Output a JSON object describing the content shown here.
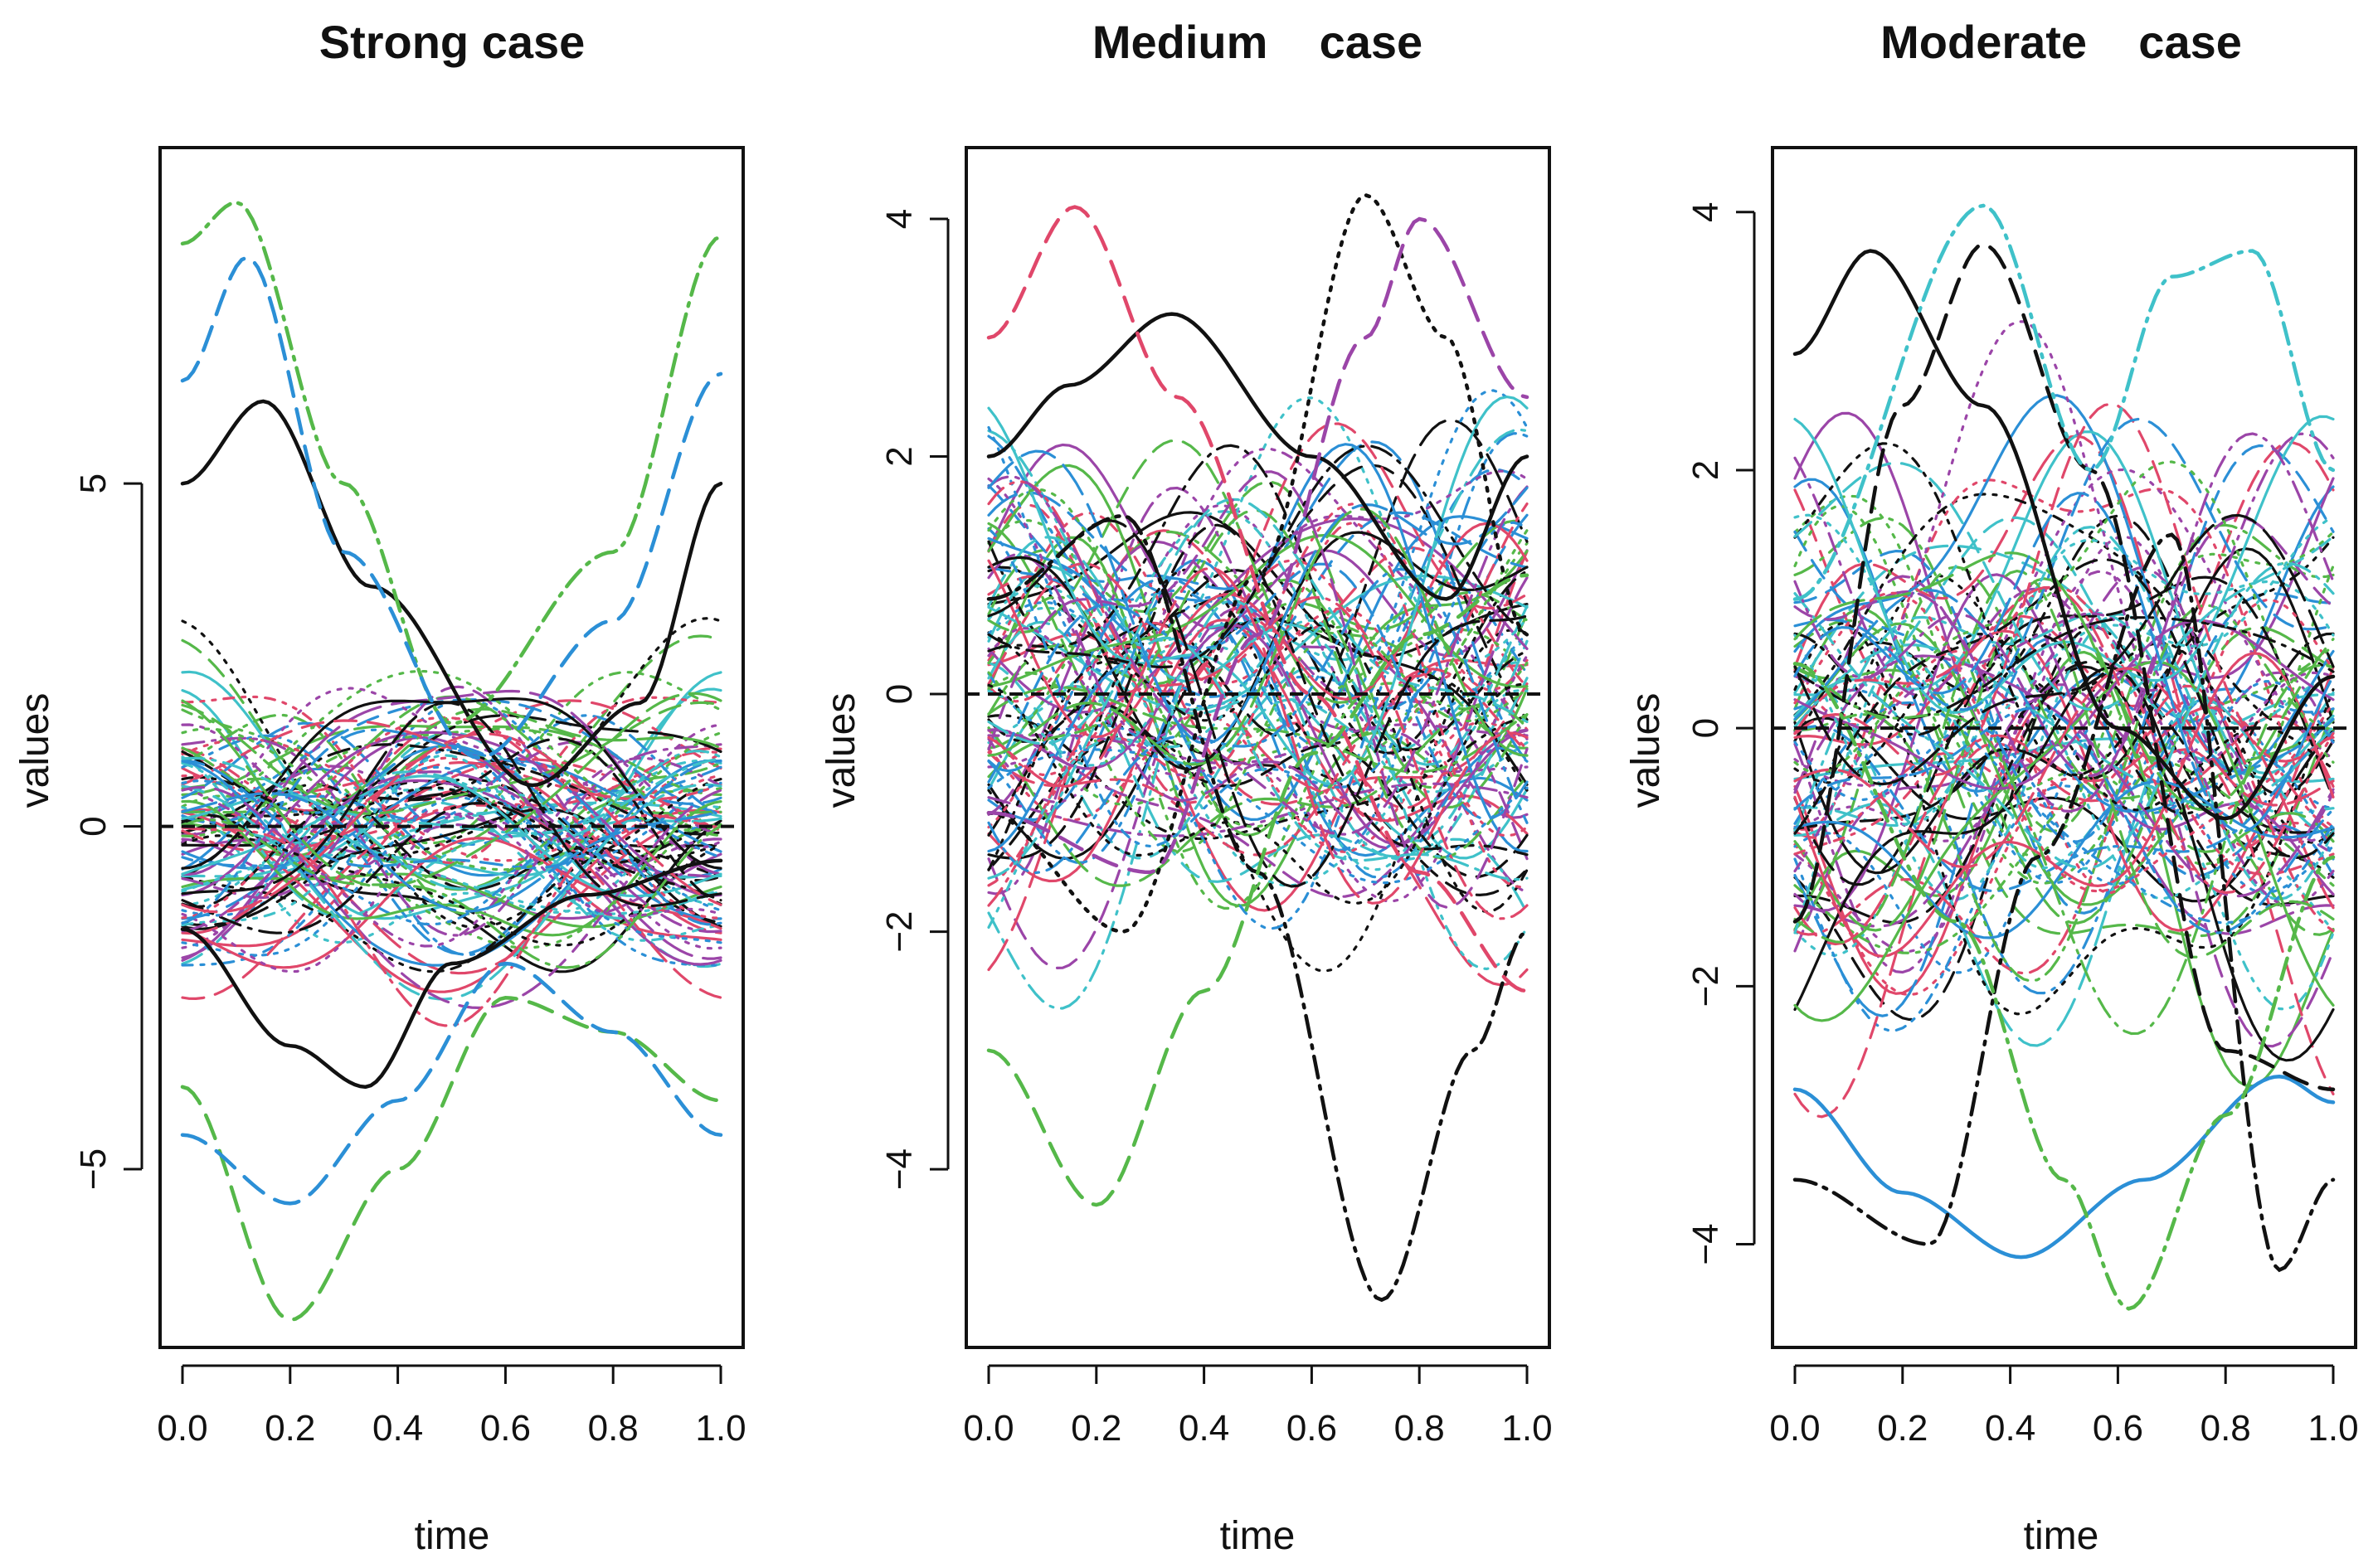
{
  "chart_data": [
    {
      "type": "line",
      "title": "Strong case",
      "xlabel": "time",
      "ylabel": "values",
      "xlim": [
        0,
        1
      ],
      "ylim": [
        -7.6,
        9.9
      ],
      "xticks": [
        "0.0",
        "0.2",
        "0.4",
        "0.6",
        "0.8",
        "1.0"
      ],
      "xtick_values": [
        0,
        0.2,
        0.4,
        0.6,
        0.8,
        1.0
      ],
      "yticks": [
        "−5",
        "0",
        "5"
      ],
      "ytick_values": [
        -5,
        0,
        5
      ],
      "reference_line": 0,
      "series_count": 100,
      "highlighted_series": [
        {
          "name": "black solid",
          "x": [
            0,
            0.15,
            0.35,
            0.65,
            0.85,
            1.0
          ],
          "values": [
            5.0,
            6.2,
            3.5,
            0.6,
            1.8,
            5.0
          ]
        },
        {
          "name": "black solid low",
          "x": [
            0,
            0.2,
            0.34,
            0.5,
            0.75,
            1.0
          ],
          "values": [
            -1.5,
            -3.2,
            -3.8,
            -2.0,
            -1.0,
            -0.5
          ]
        },
        {
          "name": "green dash-dot top",
          "x": [
            0,
            0.1,
            0.3,
            0.5,
            0.8,
            1.0
          ],
          "values": [
            8.5,
            9.1,
            5.0,
            1.5,
            4.0,
            8.6
          ]
        },
        {
          "name": "green dashed bottom",
          "x": [
            0,
            0.2,
            0.4,
            0.6,
            0.8,
            1.0
          ],
          "values": [
            -3.8,
            -7.2,
            -5.0,
            -2.5,
            -3.0,
            -4.0
          ]
        },
        {
          "name": "blue dashed top",
          "x": [
            0,
            0.12,
            0.3,
            0.55,
            0.8,
            1.0
          ],
          "values": [
            6.5,
            8.3,
            4.0,
            1.0,
            3.0,
            6.6
          ]
        },
        {
          "name": "blue dashed bottom",
          "x": [
            0,
            0.2,
            0.4,
            0.6,
            0.8,
            1.0
          ],
          "values": [
            -4.5,
            -5.5,
            -4.0,
            -2.0,
            -3.0,
            -4.5
          ]
        }
      ]
    },
    {
      "type": "line",
      "title": "Medium    case",
      "xlabel": "time",
      "ylabel": "values",
      "xlim": [
        0,
        1
      ],
      "ylim": [
        -5.5,
        4.6
      ],
      "xticks": [
        "0.0",
        "0.2",
        "0.4",
        "0.6",
        "0.8",
        "1.0"
      ],
      "xtick_values": [
        0,
        0.2,
        0.4,
        0.6,
        0.8,
        1.0
      ],
      "yticks": [
        "−4",
        "−2",
        "0",
        "2",
        "4"
      ],
      "ytick_values": [
        -4,
        -2,
        0,
        2,
        4
      ],
      "reference_line": 0,
      "series_count": 100,
      "highlighted_series": [
        {
          "name": "black solid",
          "x": [
            0,
            0.15,
            0.34,
            0.6,
            0.85,
            1.0
          ],
          "values": [
            2.0,
            2.6,
            3.2,
            2.0,
            0.8,
            2.0
          ]
        },
        {
          "name": "black dotted",
          "x": [
            0,
            0.25,
            0.5,
            0.7,
            0.85,
            1.0
          ],
          "values": [
            -1.0,
            -2.0,
            1.0,
            4.2,
            3.0,
            0.5
          ]
        },
        {
          "name": "black dash-dot",
          "x": [
            0,
            0.25,
            0.5,
            0.73,
            0.9,
            1.0
          ],
          "values": [
            0.8,
            1.5,
            -1.5,
            -5.1,
            -3.0,
            -2.0
          ]
        },
        {
          "name": "pink dashed top",
          "x": [
            0,
            0.16,
            0.35,
            0.6,
            0.8,
            1.0
          ],
          "values": [
            3.0,
            4.1,
            2.5,
            0.0,
            -1.5,
            -2.5
          ]
        },
        {
          "name": "green dashed bottom",
          "x": [
            0,
            0.2,
            0.4,
            0.6,
            0.8,
            1.0
          ],
          "values": [
            -3.0,
            -4.3,
            -2.5,
            -0.5,
            0.5,
            1.0
          ]
        },
        {
          "name": "purple dashed top",
          "x": [
            0,
            0.3,
            0.5,
            0.7,
            0.8,
            1.0
          ],
          "values": [
            -1.0,
            -1.5,
            0.5,
            3.0,
            4.0,
            2.5
          ]
        }
      ]
    },
    {
      "type": "line",
      "title": "Moderate    case",
      "xlabel": "time",
      "ylabel": "values",
      "xlim": [
        0,
        1
      ],
      "ylim": [
        -4.8,
        4.5
      ],
      "xticks": [
        "0.0",
        "0.2",
        "0.4",
        "0.6",
        "0.8",
        "1.0"
      ],
      "xtick_values": [
        0,
        0.2,
        0.4,
        0.6,
        0.8,
        1.0
      ],
      "yticks": [
        "−4",
        "−2",
        "0",
        "2",
        "4"
      ],
      "ytick_values": [
        -4,
        -2,
        0,
        2,
        4
      ],
      "reference_line": 0,
      "series_count": 100,
      "highlighted_series": [
        {
          "name": "black solid",
          "x": [
            0,
            0.14,
            0.35,
            0.6,
            0.8,
            1.0
          ],
          "values": [
            2.9,
            3.7,
            2.5,
            0.0,
            -0.7,
            0.4
          ]
        },
        {
          "name": "blue solid bottom",
          "x": [
            0,
            0.2,
            0.42,
            0.65,
            0.9,
            1.0
          ],
          "values": [
            -2.8,
            -3.6,
            -4.1,
            -3.5,
            -2.7,
            -2.9
          ]
        },
        {
          "name": "black dashed",
          "x": [
            0,
            0.2,
            0.35,
            0.55,
            0.8,
            1.0
          ],
          "values": [
            -1.5,
            2.5,
            3.75,
            2.0,
            -2.5,
            -2.8
          ]
        },
        {
          "name": "black dash-dot",
          "x": [
            0,
            0.25,
            0.45,
            0.7,
            0.9,
            1.0
          ],
          "values": [
            -3.5,
            -4.0,
            -1.0,
            1.5,
            -4.2,
            -3.5
          ]
        },
        {
          "name": "cyan dash-dot top",
          "x": [
            0,
            0.35,
            0.55,
            0.7,
            0.85,
            1.0
          ],
          "values": [
            1.0,
            4.05,
            2.0,
            3.5,
            3.7,
            2.0
          ]
        },
        {
          "name": "green dash-dot bottom",
          "x": [
            0,
            0.3,
            0.5,
            0.62,
            0.8,
            1.0
          ],
          "values": [
            0.5,
            -1.5,
            -3.5,
            -4.5,
            -3.0,
            -1.0
          ]
        }
      ]
    }
  ]
}
